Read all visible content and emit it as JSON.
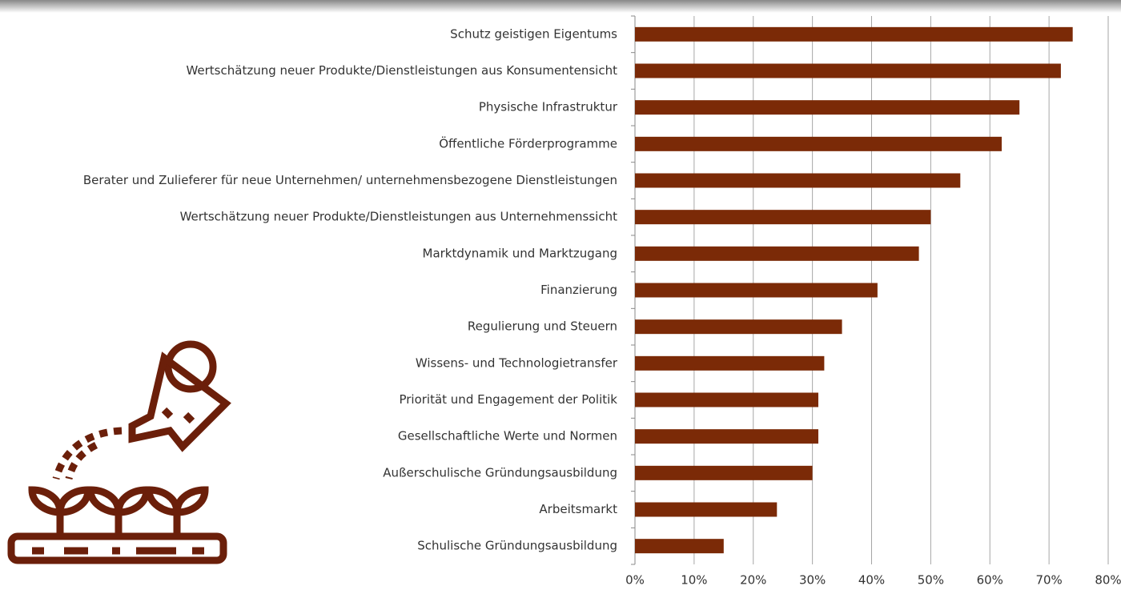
{
  "chart_data": {
    "type": "barh",
    "categories": [
      "Schutz geistigen Eigentums",
      "Wertschätzung neuer Produkte/Dienstleistungen aus Konsumentensicht",
      "Physische Infrastruktur",
      "Öffentliche Förderprogramme",
      "Berater und Zulieferer für neue Unternehmen/ unternehmensbezogene Dienstleistungen",
      "Wertschätzung neuer Produkte/Dienstleistungen aus Unternehmenssicht",
      "Marktdynamik und Marktzugang",
      "Finanzierung",
      "Regulierung und Steuern",
      "Wissens- und Technologietransfer",
      "Priorität und Engagement der Politik",
      "Gesellschaftliche Werte und Normen",
      "Außerschulische Gründungsausbildung",
      "Arbeitsmarkt",
      "Schulische Gründungsausbildung"
    ],
    "values": [
      74,
      72,
      65,
      62,
      55,
      50,
      48,
      41,
      35,
      32,
      31,
      31,
      30,
      24,
      15
    ],
    "color": "#7b2a07",
    "xlim": [
      0,
      80
    ],
    "xticks": [
      {
        "value": 0,
        "label": "0%"
      },
      {
        "value": 10,
        "label": "10%"
      },
      {
        "value": 20,
        "label": "20%"
      },
      {
        "value": 30,
        "label": "30%"
      },
      {
        "value": 40,
        "label": "40%"
      },
      {
        "value": 50,
        "label": "50%"
      },
      {
        "value": 60,
        "label": "60%"
      },
      {
        "value": 70,
        "label": "70%"
      },
      {
        "value": 80,
        "label": "80%"
      }
    ],
    "grid": true
  }
}
